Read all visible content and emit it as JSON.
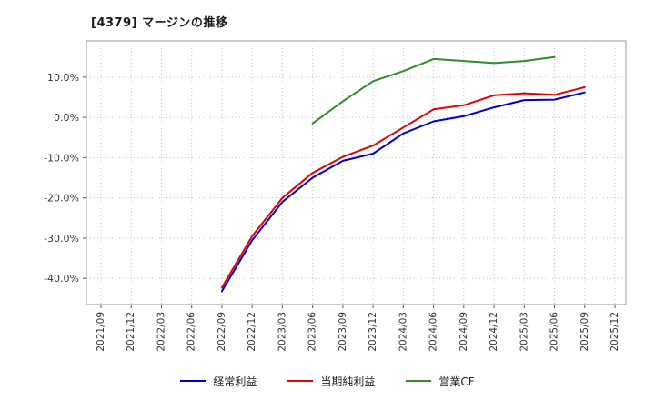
{
  "title": "[4379]  マージンの推移",
  "chart_data": {
    "type": "line",
    "title": "[4379]  マージンの推移",
    "categories": [
      "2021/09",
      "2021/12",
      "2022/03",
      "2022/06",
      "2022/09",
      "2022/12",
      "2023/03",
      "2023/06",
      "2023/09",
      "2023/12",
      "2024/03",
      "2024/06",
      "2024/09",
      "2024/12",
      "2025/03",
      "2025/06",
      "2025/09",
      "2025/12"
    ],
    "series": [
      {
        "name": "経常利益",
        "color": "#0000cc",
        "values": [
          null,
          null,
          null,
          null,
          -43.2,
          -30.5,
          -21.0,
          -15.0,
          -10.8,
          -9.0,
          -4.0,
          -1.0,
          0.3,
          2.5,
          4.3,
          4.4,
          6.2,
          null
        ]
      },
      {
        "name": "当期純利益",
        "color": "#e60000",
        "values": [
          null,
          null,
          null,
          null,
          -42.3,
          -29.5,
          -20.0,
          -13.8,
          -9.8,
          -7.0,
          -2.5,
          2.0,
          3.0,
          5.5,
          6.0,
          5.6,
          7.5,
          null
        ]
      },
      {
        "name": "営業CF",
        "color": "#2e8b2e",
        "values": [
          null,
          null,
          null,
          null,
          null,
          null,
          null,
          -1.5,
          4.0,
          9.0,
          11.5,
          14.5,
          14.0,
          13.5,
          14.0,
          15.0,
          null,
          null
        ]
      }
    ],
    "yticks": [
      10,
      0,
      -10,
      -20,
      -30,
      -40
    ],
    "ytick_format": "percent_1dp",
    "ylim": [
      -46.5,
      19
    ],
    "grid": true,
    "grid_style": "dotted",
    "legend_position": "bottom",
    "xlabel": "",
    "ylabel": ""
  }
}
